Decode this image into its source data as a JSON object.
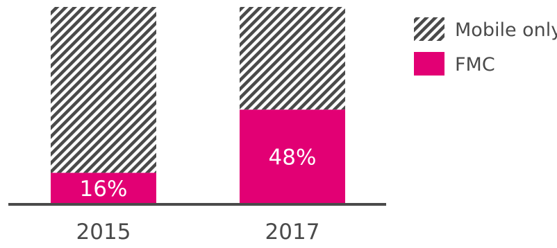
{
  "chart_data": {
    "type": "bar",
    "stacked": true,
    "categories": [
      "2015",
      "2017"
    ],
    "series": [
      {
        "name": "FMC",
        "values": [
          16,
          48
        ],
        "color": "#E20074",
        "pattern": "solid"
      },
      {
        "name": "Mobile only",
        "values": [
          84,
          52
        ],
        "color": "#4a4a4a",
        "pattern": "diagonal-hatch"
      }
    ],
    "data_labels": [
      "16%",
      "48%"
    ],
    "ylim": [
      0,
      100
    ],
    "legend_position": "top-right",
    "grid": false
  }
}
